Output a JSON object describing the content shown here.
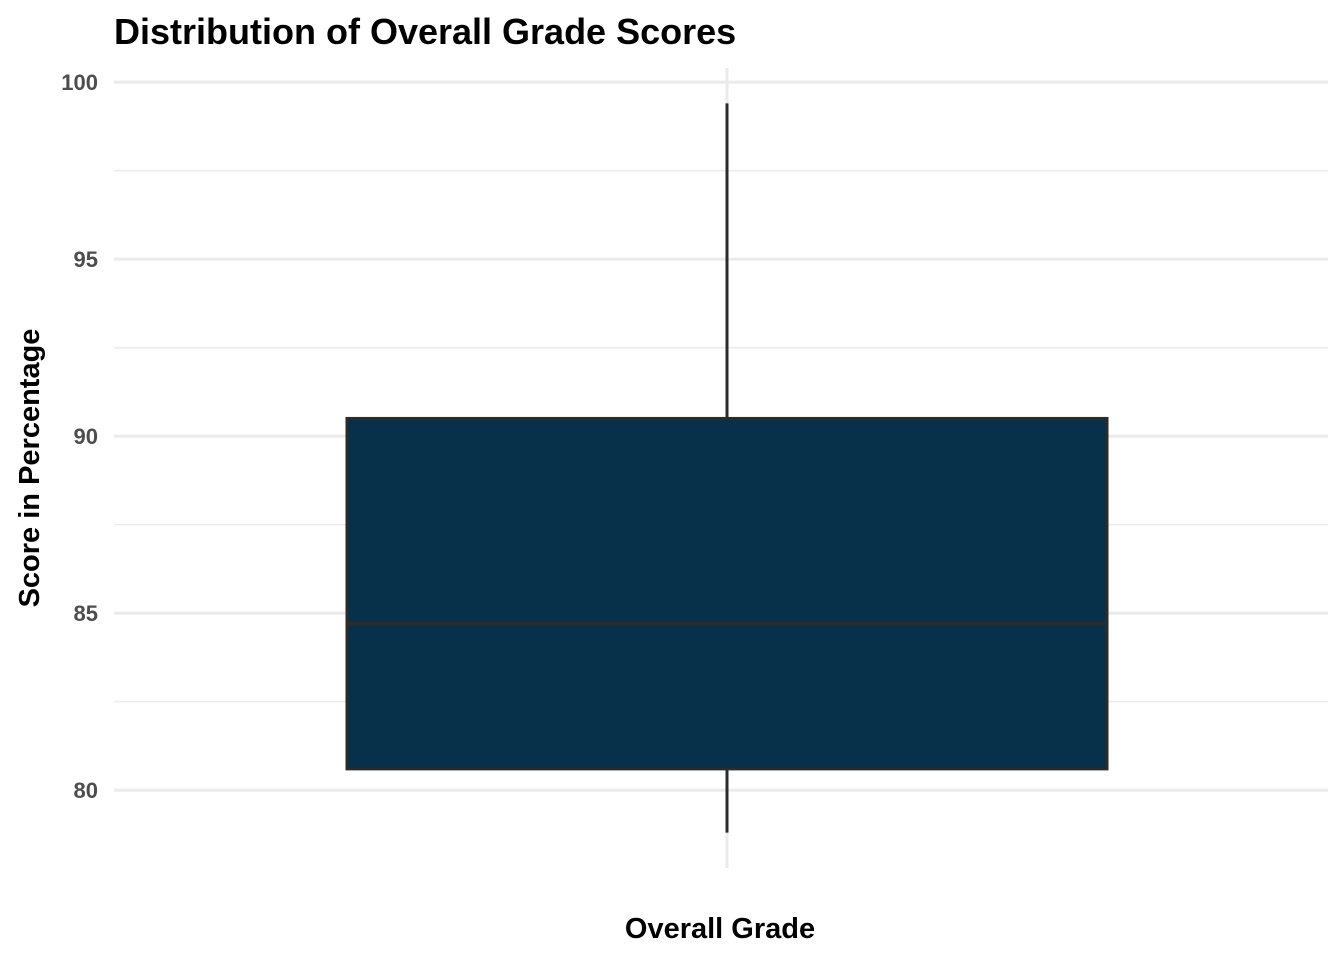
{
  "chart_data": {
    "type": "boxplot",
    "title": "Distribution of Overall Grade Scores",
    "xlabel": "Overall Grade",
    "ylabel": "Score in Percentage",
    "categories": [
      ""
    ],
    "boxes": [
      {
        "category": "",
        "whisker_low": 78.8,
        "q1": 80.6,
        "median": 84.7,
        "q3": 90.5,
        "whisker_high": 99.4
      }
    ],
    "yticks": [
      80,
      85,
      90,
      95,
      100
    ],
    "ylim": [
      77.8,
      100.4
    ],
    "grid": true,
    "legend": "none",
    "colors": {
      "box_fill": "#07314a",
      "box_stroke": "#2b2b2b",
      "whisker": "#2b2b2b",
      "grid": "#ebebeb"
    }
  }
}
